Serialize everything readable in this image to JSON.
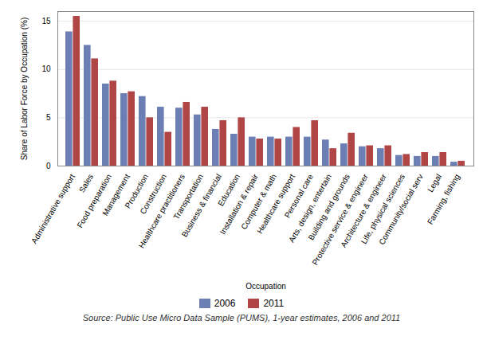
{
  "chart_data": {
    "type": "bar",
    "categories": [
      "Administrative support",
      "Sales",
      "Food preparation",
      "Management",
      "Production",
      "Construction",
      "Healthcare practitioners",
      "Transportation",
      "Business & financial",
      "Education",
      "Installation & repair",
      "Computer & math",
      "Healthcare support",
      "Personal care",
      "Arts, design, entertain",
      "Building and grounds",
      "Protective service & engineer",
      "Architecture & engineer",
      "Life, physical sciences",
      "Community/social serv",
      "Legal",
      "Farming, fishing"
    ],
    "series": [
      {
        "name": "2006",
        "color": "#6B7FB5",
        "values": [
          13.9,
          12.5,
          8.5,
          7.5,
          7.2,
          6.1,
          6.0,
          5.3,
          3.8,
          3.3,
          3.0,
          3.0,
          3.0,
          3.0,
          2.7,
          2.3,
          2.0,
          1.8,
          1.1,
          1.0,
          1.0,
          0.4
        ]
      },
      {
        "name": "2011",
        "color": "#B04545",
        "values": [
          15.5,
          11.1,
          8.8,
          7.7,
          5.0,
          3.5,
          6.6,
          6.1,
          4.7,
          5.0,
          2.8,
          2.8,
          4.0,
          4.7,
          1.8,
          3.4,
          2.1,
          2.1,
          1.2,
          1.4,
          1.4,
          0.5
        ]
      }
    ],
    "xlabel": "Occupation",
    "ylabel": "Share of Labor Force by Occupation (%)",
    "source": "Source: Public Use Micro Data Sample (PUMS), 1-year estimates, 2006 and 2011",
    "ylim": [
      0,
      16
    ],
    "yticks": [
      0,
      5,
      10,
      15
    ],
    "grid": true,
    "legend": "lower center"
  }
}
